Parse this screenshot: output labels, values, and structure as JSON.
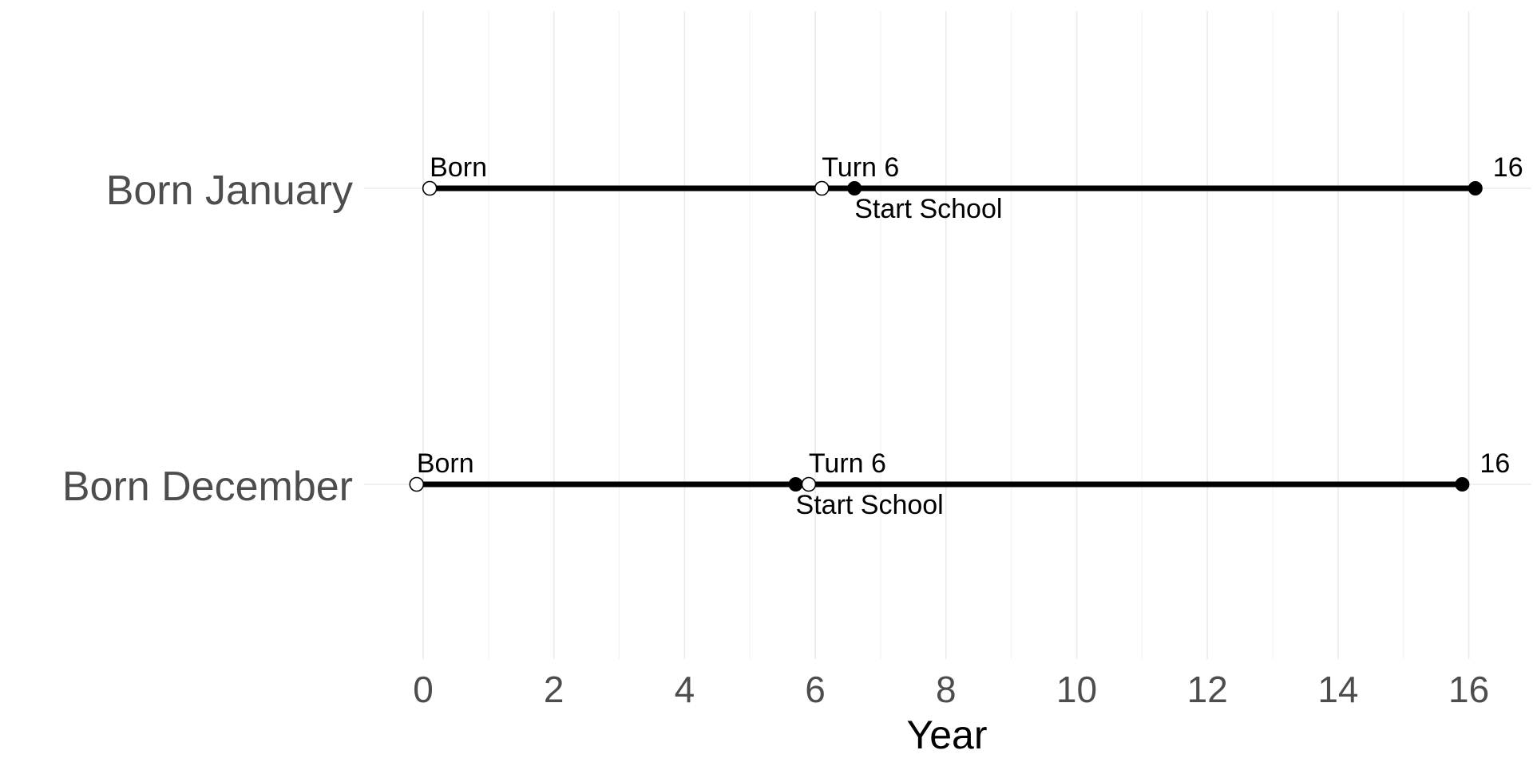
{
  "chart_data": {
    "type": "timeline",
    "xlabel": "Year",
    "xlim": [
      -0.9,
      16.9
    ],
    "xticks": [
      0,
      2,
      4,
      6,
      8,
      10,
      12,
      14,
      16
    ],
    "grid": true,
    "rows": [
      {
        "label": "Born January",
        "segment": [
          0.1,
          16.1
        ],
        "events": [
          {
            "name": "Born",
            "x": 0.1,
            "marker": "open"
          },
          {
            "name": "Turn 6",
            "x": 6.1,
            "marker": "open"
          },
          {
            "name": "Start School",
            "x": 6.6,
            "marker": "filled"
          },
          {
            "name": "16",
            "x": 16.1,
            "marker": "filled"
          }
        ]
      },
      {
        "label": "Born December",
        "segment": [
          -0.1,
          15.9
        ],
        "events": [
          {
            "name": "Born",
            "x": -0.1,
            "marker": "open"
          },
          {
            "name": "Start School",
            "x": 5.7,
            "marker": "filled"
          },
          {
            "name": "Turn 6",
            "x": 5.9,
            "marker": "open"
          },
          {
            "name": "16",
            "x": 15.9,
            "marker": "filled"
          }
        ]
      }
    ]
  }
}
